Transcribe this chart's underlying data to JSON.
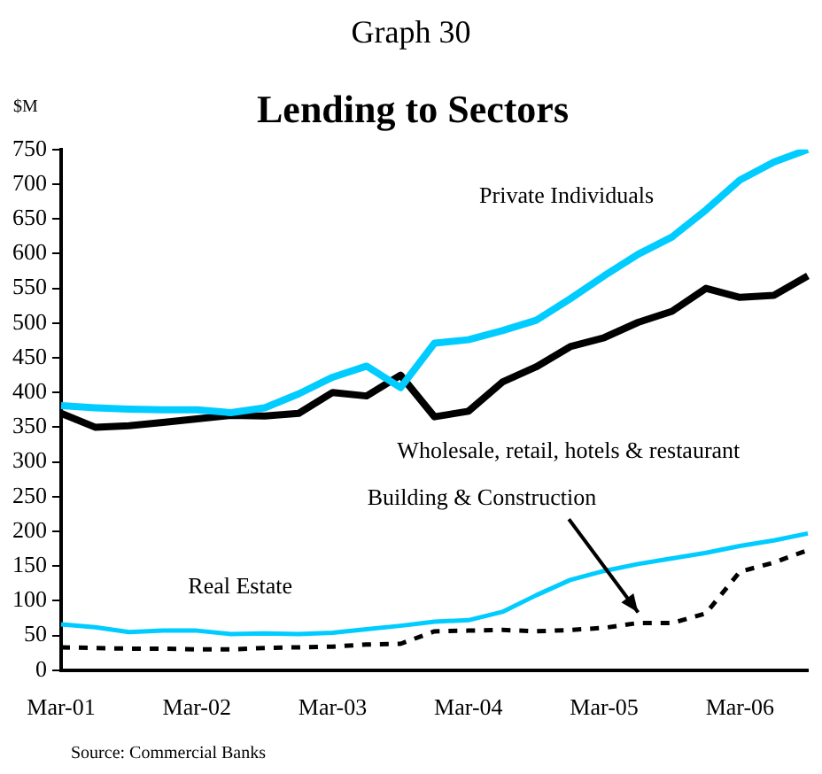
{
  "chart_data": {
    "type": "line",
    "title": "Graph 30",
    "subtitle": "Lending to Sectors",
    "ylabel": "$M",
    "categories": [
      "Mar-01",
      null,
      null,
      null,
      "Mar-02",
      null,
      null,
      null,
      "Mar-03",
      null,
      null,
      null,
      "Mar-04",
      null,
      null,
      null,
      "Mar-05",
      null,
      null,
      null,
      "Mar-06",
      null,
      null
    ],
    "series": [
      {
        "name": "Private Individuals",
        "color": "#00ccff",
        "values": [
          381,
          378,
          376,
          375,
          375,
          371,
          378,
          398,
          422,
          438,
          407,
          471,
          476,
          489,
          504,
          535,
          568,
          599,
          624,
          663,
          706,
          732,
          750
        ]
      },
      {
        "name": "Wholesale, retail, hotels & restaurant",
        "color": "#000000",
        "values": [
          370,
          350,
          352,
          357,
          362,
          367,
          366,
          370,
          400,
          395,
          425,
          365,
          373,
          415,
          437,
          466,
          479,
          501,
          517,
          550,
          537,
          540,
          568
        ]
      },
      {
        "name": "Building & Construction",
        "color": "#000000",
        "line_style": "dashed",
        "values": [
          33,
          32,
          31,
          31,
          30,
          30,
          32,
          33,
          34,
          37,
          38,
          56,
          57,
          58,
          56,
          58,
          61,
          68,
          68,
          82,
          142,
          155,
          173
        ]
      },
      {
        "name": "Real Estate",
        "color": "#00ccff",
        "values": [
          66,
          62,
          55,
          57,
          57,
          52,
          53,
          52,
          54,
          59,
          64,
          70,
          72,
          84,
          108,
          130,
          143,
          153,
          161,
          169,
          179,
          187,
          197
        ]
      }
    ],
    "ylim": [
      0,
      750
    ],
    "yticks": [
      0,
      50,
      100,
      150,
      200,
      250,
      300,
      350,
      400,
      450,
      500,
      550,
      600,
      650,
      700,
      750
    ],
    "grid": false,
    "legend": false,
    "marker": "none",
    "line_style": "solid",
    "annotations": [
      "Source:  Commercial Banks"
    ]
  }
}
